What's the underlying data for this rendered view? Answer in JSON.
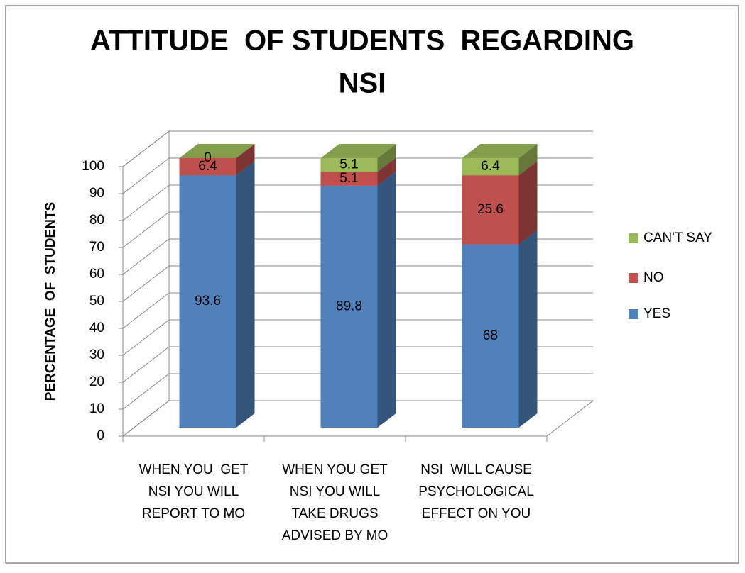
{
  "chart_data": {
    "type": "bar3d_stacked",
    "title": [
      "ATTITUDE  OF STUDENTS  REGARDING",
      "NSI"
    ],
    "y_label": "PERCENTAGE  OF  STUDENTS",
    "categories": [
      [
        "WHEN YOU  GET",
        "NSI YOU WILL",
        "REPORT TO MO"
      ],
      [
        "WHEN YOU GET",
        "NSI YOU WILL",
        "TAKE DRUGS",
        "ADVISED BY MO"
      ],
      [
        "NSI  WILL CAUSE",
        "PSYCHOLOGICAL",
        "EFFECT ON YOU"
      ]
    ],
    "series": [
      {
        "name": "YES",
        "color": "#4f81bd",
        "values": [
          93.6,
          89.8,
          68
        ]
      },
      {
        "name": "NO",
        "color": "#c0504d",
        "values": [
          6.4,
          5.1,
          25.6
        ]
      },
      {
        "name": "CAN'T SAY",
        "color": "#9bbb59",
        "values": [
          0,
          5.1,
          6.4
        ]
      }
    ],
    "ylim": [
      0,
      100
    ],
    "yticks": [
      0,
      10,
      20,
      30,
      40,
      50,
      60,
      70,
      80,
      90,
      100
    ],
    "grid": true,
    "legend": "right"
  }
}
